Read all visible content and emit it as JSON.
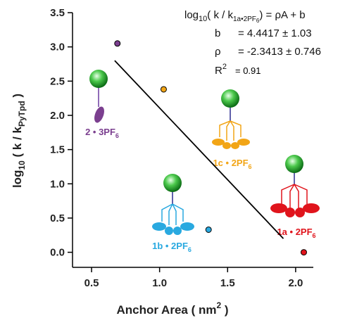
{
  "chart_data": {
    "type": "scatter",
    "x_label": [
      "Anchor Area ( nm",
      "2",
      " )"
    ],
    "y_label": [
      "log",
      "10",
      " ( k / k",
      "PyTpd",
      " )"
    ],
    "x": [
      0.69,
      1.03,
      1.36,
      2.06
    ],
    "values": [
      3.05,
      2.38,
      0.33,
      0.0
    ],
    "colors": [
      "#7b3f8f",
      "#f2a516",
      "#29a9e0",
      "#e0141c"
    ],
    "fit": {
      "x": [
        0.67,
        1.91
      ],
      "values": [
        2.8,
        0.2
      ],
      "color": "#000000"
    },
    "xlim": [
      0.36,
      2.13
    ],
    "ylim": [
      -0.22,
      3.5
    ],
    "xticks": [
      0.5,
      {
        "value": 1.0,
        "label": "1.0"
      },
      1.5,
      {
        "value": 2.0,
        "label": "2.0"
      }
    ],
    "yticks": [
      {
        "value": 0.0,
        "label": "0.0"
      },
      0.5,
      {
        "value": 1.0,
        "label": "1.0"
      },
      1.5,
      {
        "value": 2.0,
        "label": "2.0"
      },
      2.5,
      {
        "value": 3.0,
        "label": "3.0"
      },
      3.5
    ],
    "equation": [
      "log",
      "10",
      "( k / k",
      "1a•2PF",
      "6",
      ") = ρA + b"
    ],
    "fit_stats": {
      "b_name": "b",
      "b": "= 4.4417 ± 1.03",
      "rho_name": "ρ",
      "rho": "= -2.3413 ± 0.746",
      "r2_name": "R",
      "r2_sup": "2",
      "r2": "= 0.91"
    },
    "labels": [
      {
        "text": "2 • 3PF",
        "sub": "6"
      },
      {
        "text": "1c • 2PF",
        "sub": "6"
      },
      {
        "text": "1b • 2PF",
        "sub": "6"
      },
      {
        "text": "1a • 2PF",
        "sub": "6"
      }
    ]
  }
}
